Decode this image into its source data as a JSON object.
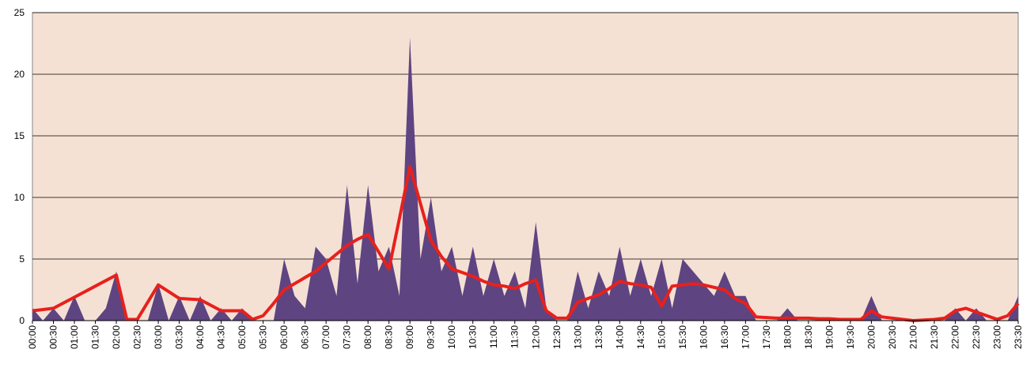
{
  "chart_data": {
    "type": "area",
    "categories": [
      "00:00",
      null,
      "00:30",
      null,
      "01:00",
      null,
      "01:30",
      null,
      "02:00",
      null,
      "02:30",
      null,
      "03:00",
      null,
      "03:30",
      null,
      "04:00",
      null,
      "04:30",
      null,
      "05:00",
      null,
      "05:30",
      null,
      "06:00",
      null,
      "06:30",
      null,
      "07:00",
      null,
      "07:30",
      null,
      "08:00",
      null,
      "08:30",
      null,
      "09:00",
      null,
      "09:30",
      null,
      "10:00",
      null,
      "10:30",
      null,
      "11:00",
      null,
      "11:30",
      null,
      "12:00",
      null,
      "12:30",
      null,
      "13:00",
      null,
      "13:30",
      null,
      "14:00",
      null,
      "14:30",
      null,
      "15:00",
      null,
      "15:30",
      null,
      "16:00",
      null,
      "16:30",
      null,
      "17:00",
      null,
      "17:30",
      null,
      "18:00",
      null,
      "18:30",
      null,
      "19:00",
      null,
      "19:30",
      null,
      "20:00",
      null,
      "20:30",
      null,
      "21:00",
      null,
      "21:30",
      null,
      "22:00",
      null,
      "22:30",
      null,
      "23:00",
      null,
      "23:30"
    ],
    "series": [
      {
        "type": "area",
        "color": "#5f4482",
        "values": [
          1,
          0,
          1,
          0,
          2,
          0,
          0,
          1,
          4,
          0,
          0,
          0,
          3,
          0,
          2,
          0,
          2,
          0,
          1,
          0,
          1,
          0,
          0,
          0,
          5,
          2,
          1,
          6,
          5,
          2,
          11,
          3,
          11,
          4,
          6,
          2,
          23,
          5,
          10,
          4,
          6,
          2,
          6,
          2,
          5,
          2,
          4,
          1,
          8,
          1,
          0,
          0,
          4,
          1,
          4,
          2,
          6,
          2,
          5,
          2,
          5,
          1,
          5,
          4,
          3,
          2,
          4,
          2,
          2,
          0,
          0,
          0,
          1,
          0,
          0,
          0,
          0,
          0,
          0,
          0,
          2,
          0,
          0,
          0,
          0,
          0,
          0,
          0,
          1,
          0,
          1,
          0,
          0,
          0,
          2
        ]
      },
      {
        "type": "line",
        "color": "#e8201c",
        "values": [
          0.8,
          0.9,
          1,
          1.45,
          1.9,
          2.35,
          2.8,
          3.25,
          3.7,
          0.1,
          0.1,
          1.5,
          2.9,
          2.35,
          1.8,
          1.75,
          1.7,
          1.25,
          0.8,
          0.8,
          0.8,
          0.1,
          0.4,
          1.4,
          2.5,
          3,
          3.5,
          4,
          4.7,
          5.4,
          6.1,
          6.6,
          7,
          5.6,
          4.2,
          8.3,
          12.5,
          9.5,
          6.5,
          5.2,
          4.2,
          3.9,
          3.6,
          3.2,
          2.9,
          2.8,
          2.6,
          3,
          3.3,
          0.8,
          0.2,
          0.2,
          1.5,
          1.8,
          2.1,
          2.6,
          3.2,
          3,
          2.9,
          2.7,
          1.2,
          2.8,
          2.9,
          3,
          2.9,
          2.7,
          2.5,
          1.8,
          1.4,
          0.3,
          0.25,
          0.2,
          0.2,
          0.2,
          0.2,
          0.15,
          0.15,
          0.1,
          0.1,
          0.1,
          0.8,
          0.3,
          0.2,
          0.1,
          0,
          0.05,
          0.1,
          0.2,
          0.8,
          1,
          0.7,
          0.4,
          0.1,
          0.4,
          1.4
        ]
      }
    ],
    "ylim": [
      0,
      25
    ],
    "yticks": [
      0,
      5,
      10,
      15,
      20,
      25
    ],
    "grid": true,
    "plot_background": "#f5e1d4"
  }
}
